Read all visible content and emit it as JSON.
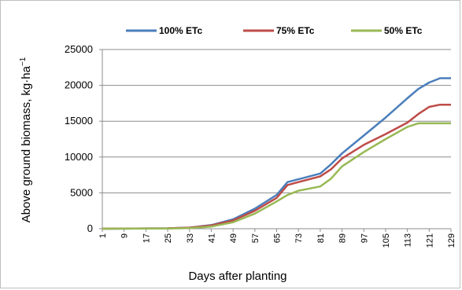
{
  "chart_data": {
    "type": "line",
    "title": "",
    "xlabel": "Days after planting",
    "ylabel": "Above ground biomass, kg·ha",
    "ylabel_sup": "−1",
    "ylim": [
      0,
      25000
    ],
    "xlim": [
      1,
      129
    ],
    "yticks": [
      "0",
      "5000",
      "10000",
      "15000",
      "20000",
      "25000"
    ],
    "xticks": [
      "1",
      "9",
      "17",
      "25",
      "33",
      "41",
      "49",
      "57",
      "65",
      "73",
      "81",
      "89",
      "97",
      "105",
      "113",
      "121",
      "129"
    ],
    "grid": true,
    "legend_position": "top",
    "colors": {
      "s100": "#4a7ebb",
      "s75": "#be4b48",
      "s50": "#98b954"
    },
    "series": [
      {
        "name": "100% ETc",
        "x": [
          1,
          25,
          33,
          41,
          49,
          57,
          65,
          69,
          73,
          81,
          85,
          89,
          97,
          105,
          113,
          117,
          121,
          125,
          129
        ],
        "values": [
          0,
          50,
          150,
          500,
          1300,
          2800,
          4700,
          6500,
          6900,
          7700,
          9000,
          10500,
          13000,
          15500,
          18200,
          19500,
          20400,
          21000,
          21000
        ]
      },
      {
        "name": "75% ETc",
        "x": [
          1,
          25,
          33,
          41,
          49,
          57,
          65,
          69,
          73,
          81,
          85,
          89,
          97,
          105,
          113,
          117,
          121,
          125,
          129
        ],
        "values": [
          0,
          50,
          150,
          450,
          1150,
          2500,
          4300,
          6100,
          6500,
          7300,
          8300,
          9800,
          11700,
          13200,
          14800,
          16000,
          17000,
          17300,
          17300
        ]
      },
      {
        "name": "50% ETc",
        "x": [
          1,
          25,
          33,
          41,
          49,
          57,
          65,
          69,
          73,
          81,
          85,
          89,
          97,
          105,
          113,
          117,
          121,
          125,
          129
        ],
        "values": [
          0,
          20,
          80,
          300,
          900,
          2100,
          3800,
          4700,
          5300,
          5900,
          7000,
          8700,
          10700,
          12500,
          14200,
          14700,
          14700,
          14700,
          14700
        ]
      }
    ]
  }
}
